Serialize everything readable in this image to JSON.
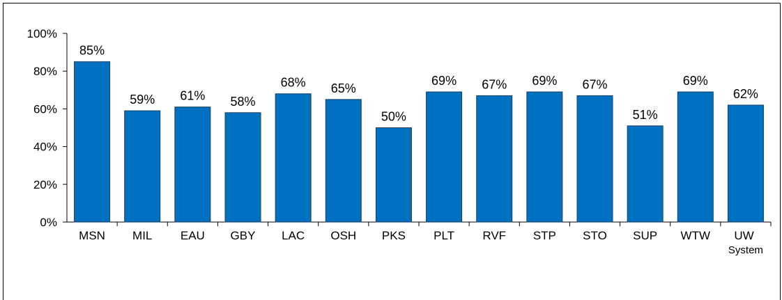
{
  "chart_data": {
    "type": "bar",
    "categories": [
      "MSN",
      "MIL",
      "EAU",
      "GBY",
      "LAC",
      "OSH",
      "PKS",
      "PLT",
      "RVF",
      "STP",
      "STO",
      "SUP",
      "WTW",
      "UW System"
    ],
    "values": [
      85,
      59,
      61,
      58,
      68,
      65,
      50,
      69,
      67,
      69,
      67,
      51,
      69,
      62
    ],
    "value_labels": [
      "85%",
      "59%",
      "61%",
      "58%",
      "68%",
      "65%",
      "50%",
      "69%",
      "67%",
      "69%",
      "67%",
      "51%",
      "69%",
      "62%"
    ],
    "color": "#0070c0",
    "ylim": [
      0,
      100
    ],
    "yticks": [
      {
        "value": 0,
        "label": "0%"
      },
      {
        "value": 20,
        "label": "20%"
      },
      {
        "value": 40,
        "label": "40%"
      },
      {
        "value": 60,
        "label": "60%"
      },
      {
        "value": 80,
        "label": "80%"
      },
      {
        "value": 100,
        "label": "100%"
      }
    ],
    "grid": false
  }
}
